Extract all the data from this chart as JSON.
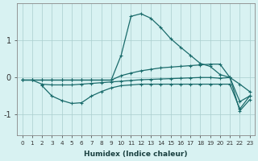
{
  "xlabel": "Humidex (Indice chaleur)",
  "bg_color": "#d8f2f2",
  "grid_color": "#aacece",
  "line_color": "#1a6b6b",
  "xlim": [
    -0.5,
    23.5
  ],
  "ylim": [
    -1.55,
    2.0
  ],
  "yticks": [
    -1,
    0,
    1
  ],
  "xticks": [
    0,
    1,
    2,
    3,
    4,
    5,
    6,
    7,
    8,
    9,
    10,
    11,
    12,
    13,
    14,
    15,
    16,
    17,
    18,
    19,
    20,
    21,
    22,
    23
  ],
  "line1_x": [
    0,
    1,
    2,
    3,
    4,
    5,
    6,
    7,
    8,
    9,
    10,
    11,
    12,
    13,
    14,
    15,
    16,
    17,
    18,
    19,
    20,
    21,
    22,
    23
  ],
  "line1_y": [
    -0.07,
    -0.07,
    -0.07,
    -0.07,
    -0.07,
    -0.07,
    -0.07,
    -0.07,
    -0.07,
    -0.07,
    0.6,
    1.65,
    1.72,
    1.6,
    1.35,
    1.05,
    0.82,
    0.6,
    0.38,
    0.3,
    0.08,
    0.0,
    -0.9,
    -0.6
  ],
  "line2_x": [
    0,
    1,
    2,
    3,
    4,
    5,
    6,
    7,
    8,
    9,
    10,
    11,
    12,
    13,
    14,
    15,
    16,
    17,
    18,
    19,
    20,
    21,
    22,
    23
  ],
  "line2_y": [
    -0.07,
    -0.07,
    -0.07,
    -0.07,
    -0.07,
    -0.07,
    -0.07,
    -0.07,
    -0.07,
    -0.07,
    0.05,
    0.12,
    0.18,
    0.22,
    0.26,
    0.28,
    0.3,
    0.32,
    0.34,
    0.36,
    0.36,
    0.0,
    -0.18,
    -0.38
  ],
  "line3_x": [
    0,
    1,
    2,
    3,
    4,
    5,
    6,
    7,
    8,
    9,
    10,
    11,
    12,
    13,
    14,
    15,
    16,
    17,
    18,
    19,
    20,
    21,
    22,
    23
  ],
  "line3_y": [
    -0.07,
    -0.07,
    -0.18,
    -0.2,
    -0.2,
    -0.2,
    -0.18,
    -0.16,
    -0.14,
    -0.12,
    -0.1,
    -0.08,
    -0.06,
    -0.05,
    -0.04,
    -0.03,
    -0.02,
    -0.01,
    0.0,
    0.0,
    -0.02,
    0.0,
    -0.65,
    -0.5
  ],
  "line4_x": [
    2,
    3,
    4,
    5,
    6,
    7,
    8,
    9,
    10,
    11,
    12,
    13,
    14,
    15,
    16,
    17,
    18,
    19,
    20,
    21,
    22,
    23
  ],
  "line4_y": [
    -0.22,
    -0.5,
    -0.62,
    -0.7,
    -0.68,
    -0.5,
    -0.38,
    -0.28,
    -0.22,
    -0.2,
    -0.18,
    -0.18,
    -0.18,
    -0.18,
    -0.18,
    -0.18,
    -0.18,
    -0.18,
    -0.18,
    -0.18,
    -0.85,
    -0.5
  ]
}
